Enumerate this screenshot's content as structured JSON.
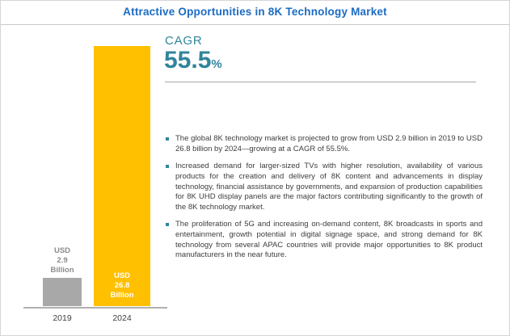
{
  "title": "Attractive Opportunities in 8K Technology Market",
  "cagr": {
    "label": "CAGR",
    "value": "55.5",
    "percent_sign": "%"
  },
  "chart_data": {
    "type": "bar",
    "categories": [
      "2019",
      "2024"
    ],
    "values": [
      2.9,
      26.8
    ],
    "value_labels": [
      "USD\n2.9\nBillion",
      "USD\n26.8\nBillion"
    ],
    "series_unit": "USD Billion",
    "title": "Attractive Opportunities in 8K Technology Market",
    "xlabel": "",
    "ylabel": "",
    "ylim": [
      0,
      28
    ],
    "bar_colors": [
      "#a8a8a8",
      "#ffc000"
    ],
    "grid": false,
    "legend": false
  },
  "bullets": [
    "The global 8K technology market is projected to grow from USD 2.9 billion in 2019 to USD 26.8 billion by 2024—growing at a CAGR of 55.5%.",
    "Increased demand for larger-sized TVs with higher resolution, availability of various products for the creation and delivery of 8K content and advancements in display technology, financial assistance by governments, and expansion of production capabilities for 8K UHD display panels are the major factors contributing significantly to the growth of the 8K technology market.",
    "The proliferation of 5G and increasing on-demand content, 8K broadcasts in sports and entertainment, growth potential in digital signage space, and strong demand for 8K technology from several APAC countries will provide major opportunities to 8K product manufacturers in the near future."
  ],
  "colors": {
    "title_blue": "#1b6bc4",
    "bar_yellow": "#ffc000",
    "bar_gray": "#a8a8a8",
    "accent_teal": "#31859b"
  }
}
